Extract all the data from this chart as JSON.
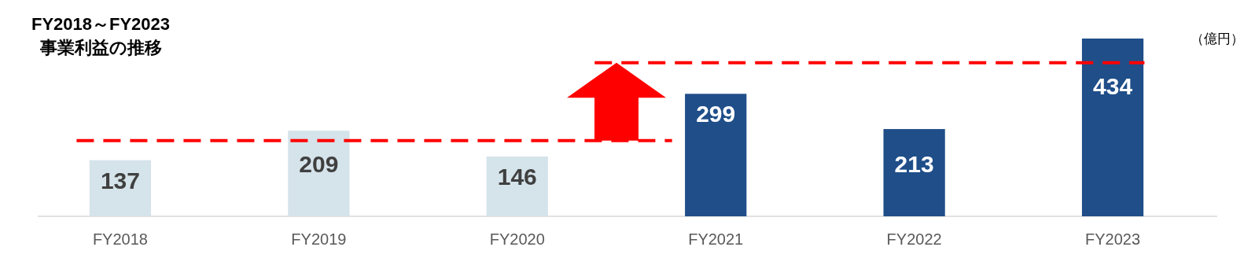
{
  "chart_data": {
    "type": "bar",
    "title": "FY2018～FY2023",
    "subtitle": "事業利益の推移",
    "categories": [
      "FY2018",
      "FY2019",
      "FY2020",
      "FY2021",
      "FY2022",
      "FY2023"
    ],
    "values": [
      137,
      209,
      146,
      299,
      213,
      434
    ],
    "colors": [
      "#d5e3ea",
      "#d5e3ea",
      "#d5e3ea",
      "#1f4e89",
      "#1f4e89",
      "#1f4e89"
    ],
    "data_labels": true,
    "annotations": [
      "（億円）"
    ],
    "ref_lines": [
      {
        "axis": "y",
        "value": 185,
        "color": "#ff0000",
        "line_style": "dashed"
      },
      {
        "axis": "y",
        "value": 375,
        "color": "#ff0000",
        "line_style": "dashed"
      }
    ]
  }
}
